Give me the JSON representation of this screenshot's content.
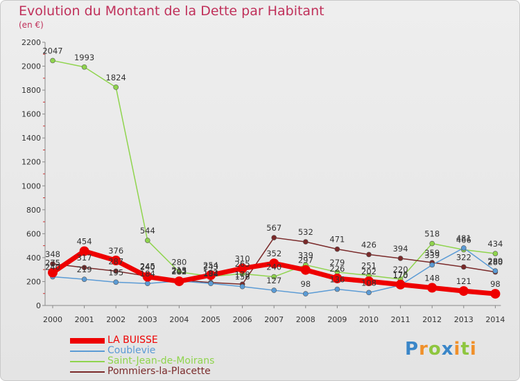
{
  "header": {
    "title": "Evolution du Montant de la Dette par Habitant",
    "subtitle": "(en €)"
  },
  "logo": {
    "text": "Proxiti",
    "letters": [
      {
        "ch": "P",
        "color": "#3a86c8"
      },
      {
        "ch": "r",
        "color": "#f0902a"
      },
      {
        "ch": "o",
        "color": "#8ec63f"
      },
      {
        "ch": "x",
        "color": "#3a86c8"
      },
      {
        "ch": "i",
        "color": "#f0902a"
      },
      {
        "ch": "t",
        "color": "#8ec63f"
      },
      {
        "ch": "i",
        "color": "#f0902a"
      }
    ]
  },
  "chart_data": {
    "type": "line",
    "x": [
      "2000",
      "2001",
      "2002",
      "2003",
      "2004",
      "2005",
      "2006",
      "2007",
      "2008",
      "2009",
      "2010",
      "2011",
      "2012",
      "2013",
      "2014"
    ],
    "ylim": [
      0,
      2200
    ],
    "yticks": [
      0,
      200,
      400,
      600,
      800,
      1000,
      1200,
      1400,
      1600,
      1800,
      2000,
      2200
    ],
    "grid": false,
    "legend": "bottom-left",
    "series": [
      {
        "name": "LA BUISSE",
        "color": "#ee0000",
        "values": [
          275,
          454,
          376,
          240,
          202,
          254,
          310,
          352,
          297,
          226,
          202,
          175,
          148,
          121,
          98
        ],
        "labels": [
          "275",
          "454",
          "376",
          "240",
          "202",
          "254",
          "310",
          "352",
          "297",
          "226",
          "202",
          "175",
          "148",
          "121",
          "98"
        ]
      },
      {
        "name": "Coublevie",
        "color": "#5b9bd5",
        "values": [
          240,
          219,
          195,
          184,
          205,
          184,
          158,
          127,
          98,
          136,
          108,
          170,
          339,
          481,
          289
        ],
        "labels": [
          "240",
          "219",
          "195",
          "184",
          "205",
          "184",
          "158",
          "127",
          "98",
          "136",
          "108",
          "170",
          "339",
          "481",
          "289"
        ]
      },
      {
        "name": "Saint-Jean-de-Moirans",
        "color": "#8fd44d",
        "values": [
          2047,
          1993,
          1824,
          544,
          280,
          243,
          265,
          240,
          339,
          279,
          251,
          220,
          518,
          466,
          434
        ],
        "labels": [
          "2047",
          "1993",
          "1824",
          "544",
          "280",
          "243",
          "265",
          "240",
          "339",
          "279",
          "251",
          "220",
          "518",
          "466",
          "434"
        ]
      },
      {
        "name": "Pommiers-la-Placette",
        "color": "#7a2a2a",
        "values": [
          348,
          317,
          287,
          245,
          213,
          192,
          178,
          567,
          532,
          471,
          426,
          394,
          359,
          322,
          280
        ],
        "labels": [
          "348",
          "317",
          "287",
          "245",
          "213",
          "192",
          "178",
          "567",
          "532",
          "471",
          "426",
          "394",
          "359",
          "322",
          "280"
        ]
      }
    ]
  }
}
